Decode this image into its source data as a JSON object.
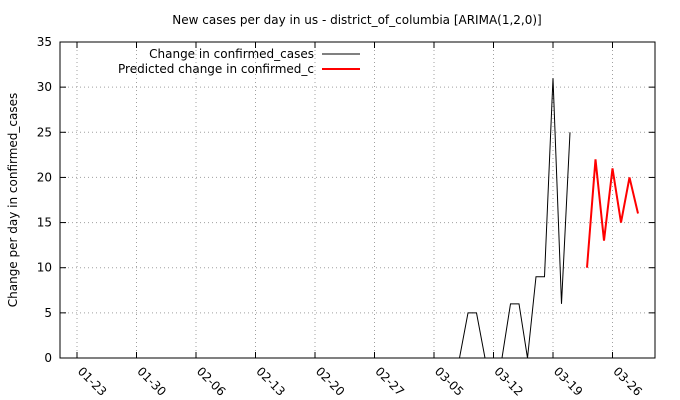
{
  "chart_data": {
    "type": "line",
    "title": "New cases per day in us - district_of_columbia [ARIMA(1,2,0)]",
    "xlabel": "",
    "ylabel": "Change per day in confirmed_cases",
    "ylim": [
      0,
      35
    ],
    "y_ticks": [
      0,
      5,
      10,
      15,
      20,
      25,
      30,
      35
    ],
    "x_axis": {
      "min": "2020-01-21",
      "max": "2020-03-31",
      "tick_dates": [
        "2020-01-23",
        "2020-01-30",
        "2020-02-06",
        "2020-02-13",
        "2020-02-20",
        "2020-02-27",
        "2020-03-05",
        "2020-03-12",
        "2020-03-19",
        "2020-03-26"
      ],
      "tick_labels": [
        "01-23",
        "01-30",
        "02-06",
        "02-13",
        "02-20",
        "02-27",
        "03-05",
        "03-12",
        "03-19",
        "03-26"
      ],
      "tick_label_rotation": "-45deg"
    },
    "grid": true,
    "legend_position": "top-left",
    "series": [
      {
        "name": "Change in confirmed_cases",
        "color": "#000000",
        "points": [
          [
            "2020-03-07",
            0
          ],
          [
            "2020-03-08",
            0
          ],
          [
            "2020-03-09",
            5
          ],
          [
            "2020-03-10",
            5
          ],
          [
            "2020-03-11",
            0
          ],
          [
            "2020-03-12",
            0
          ],
          [
            "2020-03-13",
            0
          ],
          [
            "2020-03-14",
            6
          ],
          [
            "2020-03-15",
            6
          ],
          [
            "2020-03-16",
            0
          ],
          [
            "2020-03-17",
            9
          ],
          [
            "2020-03-18",
            9
          ],
          [
            "2020-03-19",
            31
          ],
          [
            "2020-03-20",
            6
          ],
          [
            "2020-03-21",
            25
          ]
        ]
      },
      {
        "name": "Predicted change in confirmed_c",
        "color": "#ff0000",
        "points": [
          [
            "2020-03-23",
            10
          ],
          [
            "2020-03-24",
            22
          ],
          [
            "2020-03-25",
            13
          ],
          [
            "2020-03-26",
            21
          ],
          [
            "2020-03-27",
            15
          ],
          [
            "2020-03-28",
            20
          ],
          [
            "2020-03-29",
            16
          ]
        ]
      }
    ]
  }
}
